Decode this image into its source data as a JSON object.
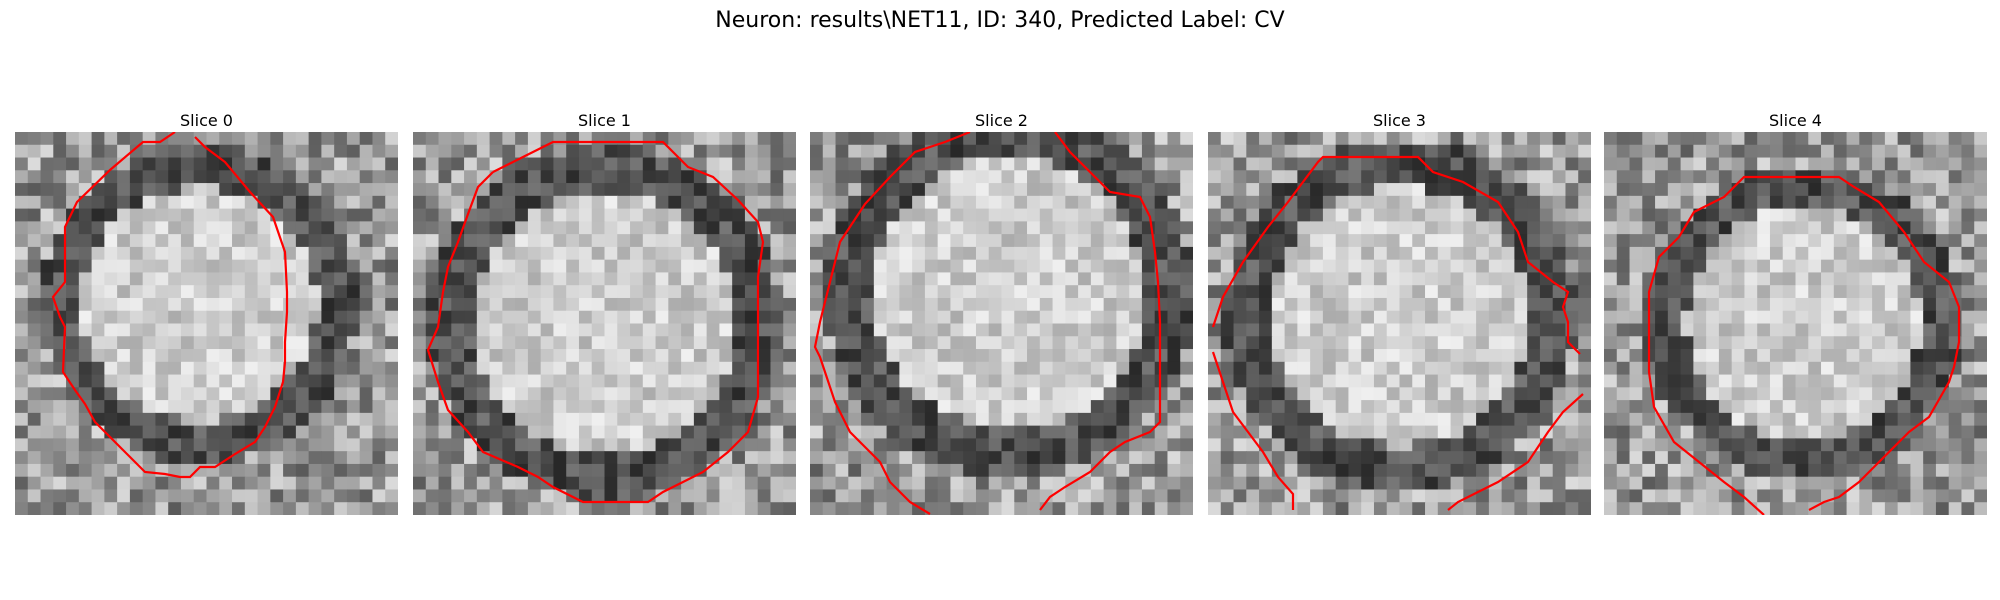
{
  "figure": {
    "title": "Neuron: results\\NET11, ID: 340, Predicted Label: CV"
  },
  "contour_color": "#ff0000",
  "panels": [
    {
      "title": "Slice 0",
      "seed": 11,
      "center": [
        0.48,
        0.45
      ],
      "radius": 0.36,
      "dark_ring": true
    },
    {
      "title": "Slice 1",
      "seed": 23,
      "center": [
        0.5,
        0.5
      ],
      "radius": 0.4,
      "dark_ring": true
    },
    {
      "title": "Slice 2",
      "seed": 37,
      "center": [
        0.52,
        0.42
      ],
      "radius": 0.42,
      "dark_ring": true
    },
    {
      "title": "Slice 3",
      "seed": 41,
      "center": [
        0.5,
        0.48
      ],
      "radius": 0.4,
      "dark_ring": true
    },
    {
      "title": "Slice 4",
      "seed": 53,
      "center": [
        0.52,
        0.5
      ],
      "radius": 0.36,
      "dark_ring": true
    }
  ]
}
